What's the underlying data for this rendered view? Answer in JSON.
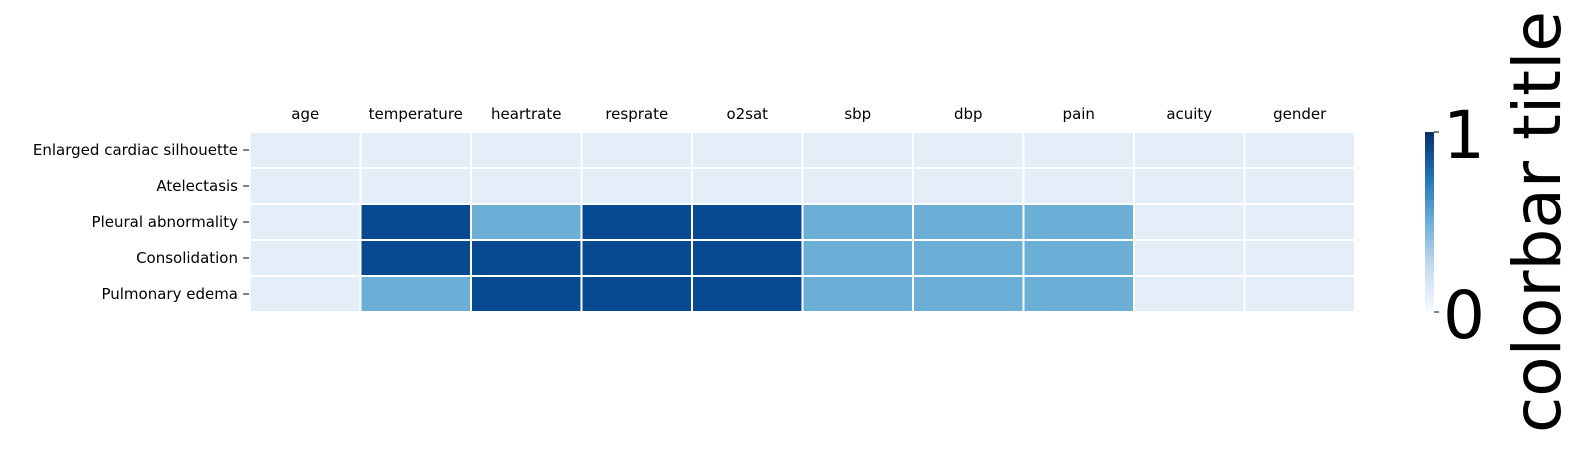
{
  "chart_data": {
    "type": "heatmap",
    "title": "",
    "xlabel": "",
    "ylabel": "",
    "columns": [
      "age",
      "temperature",
      "heartrate",
      "resprate",
      "o2sat",
      "sbp",
      "dbp",
      "pain",
      "acuity",
      "gender"
    ],
    "rows": [
      "Enlarged cardiac silhouette",
      "Atelectasis",
      "Pleural abnormality",
      "Consolidation",
      "Pulmonary edema"
    ],
    "values": [
      [
        0.1,
        0.1,
        0.1,
        0.1,
        0.1,
        0.1,
        0.1,
        0.1,
        0.1,
        0.1
      ],
      [
        0.1,
        0.1,
        0.1,
        0.1,
        0.1,
        0.1,
        0.1,
        0.1,
        0.1,
        0.1
      ],
      [
        0.1,
        1.0,
        0.5,
        1.0,
        1.0,
        0.5,
        0.5,
        0.5,
        0.1,
        0.1
      ],
      [
        0.1,
        1.0,
        1.0,
        1.0,
        1.0,
        0.5,
        0.5,
        0.5,
        0.1,
        0.1
      ],
      [
        0.1,
        0.5,
        1.0,
        1.0,
        1.0,
        0.5,
        0.5,
        0.5,
        0.1,
        0.1
      ]
    ],
    "colormap": "Blues",
    "cell_colors": {
      "low": "#e3eef8",
      "mid": "#6baed6",
      "high": "#084a91"
    },
    "colorbar": {
      "min": 0,
      "max": 1,
      "tick_labels": [
        "0",
        "1"
      ],
      "title": "colorbar title",
      "gradient": [
        "#f7fbff",
        "#c6dbef",
        "#6baed6",
        "#2171b5",
        "#08306b"
      ]
    },
    "grid_color": "#ffffff",
    "column_labels_position": "top"
  }
}
